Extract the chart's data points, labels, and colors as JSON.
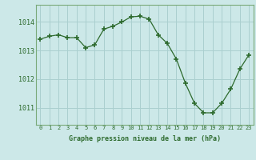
{
  "x": [
    0,
    1,
    2,
    3,
    4,
    5,
    6,
    7,
    8,
    9,
    10,
    11,
    12,
    13,
    14,
    15,
    16,
    17,
    18,
    19,
    20,
    21,
    22,
    23
  ],
  "y": [
    1013.4,
    1013.5,
    1013.55,
    1013.45,
    1013.45,
    1013.1,
    1013.2,
    1013.75,
    1013.85,
    1014.0,
    1014.18,
    1014.2,
    1014.1,
    1013.55,
    1013.25,
    1012.7,
    1011.85,
    1011.15,
    1010.82,
    1010.82,
    1011.15,
    1011.65,
    1012.35,
    1012.85
  ],
  "line_color": "#2d6a2d",
  "marker_color": "#2d6a2d",
  "bg_color": "#cce8e8",
  "grid_color": "#aacfcf",
  "ylabel_ticks": [
    1011,
    1012,
    1013,
    1014
  ],
  "xtick_labels": [
    "0",
    "1",
    "2",
    "3",
    "4",
    "5",
    "6",
    "7",
    "8",
    "9",
    "10",
    "11",
    "12",
    "13",
    "14",
    "15",
    "16",
    "17",
    "18",
    "19",
    "20",
    "21",
    "22",
    "23"
  ],
  "xlabel": "Graphe pression niveau de la mer (hPa)",
  "ylim": [
    1010.4,
    1014.6
  ],
  "xlim": [
    -0.5,
    23.5
  ],
  "spine_color": "#7aaa7a"
}
